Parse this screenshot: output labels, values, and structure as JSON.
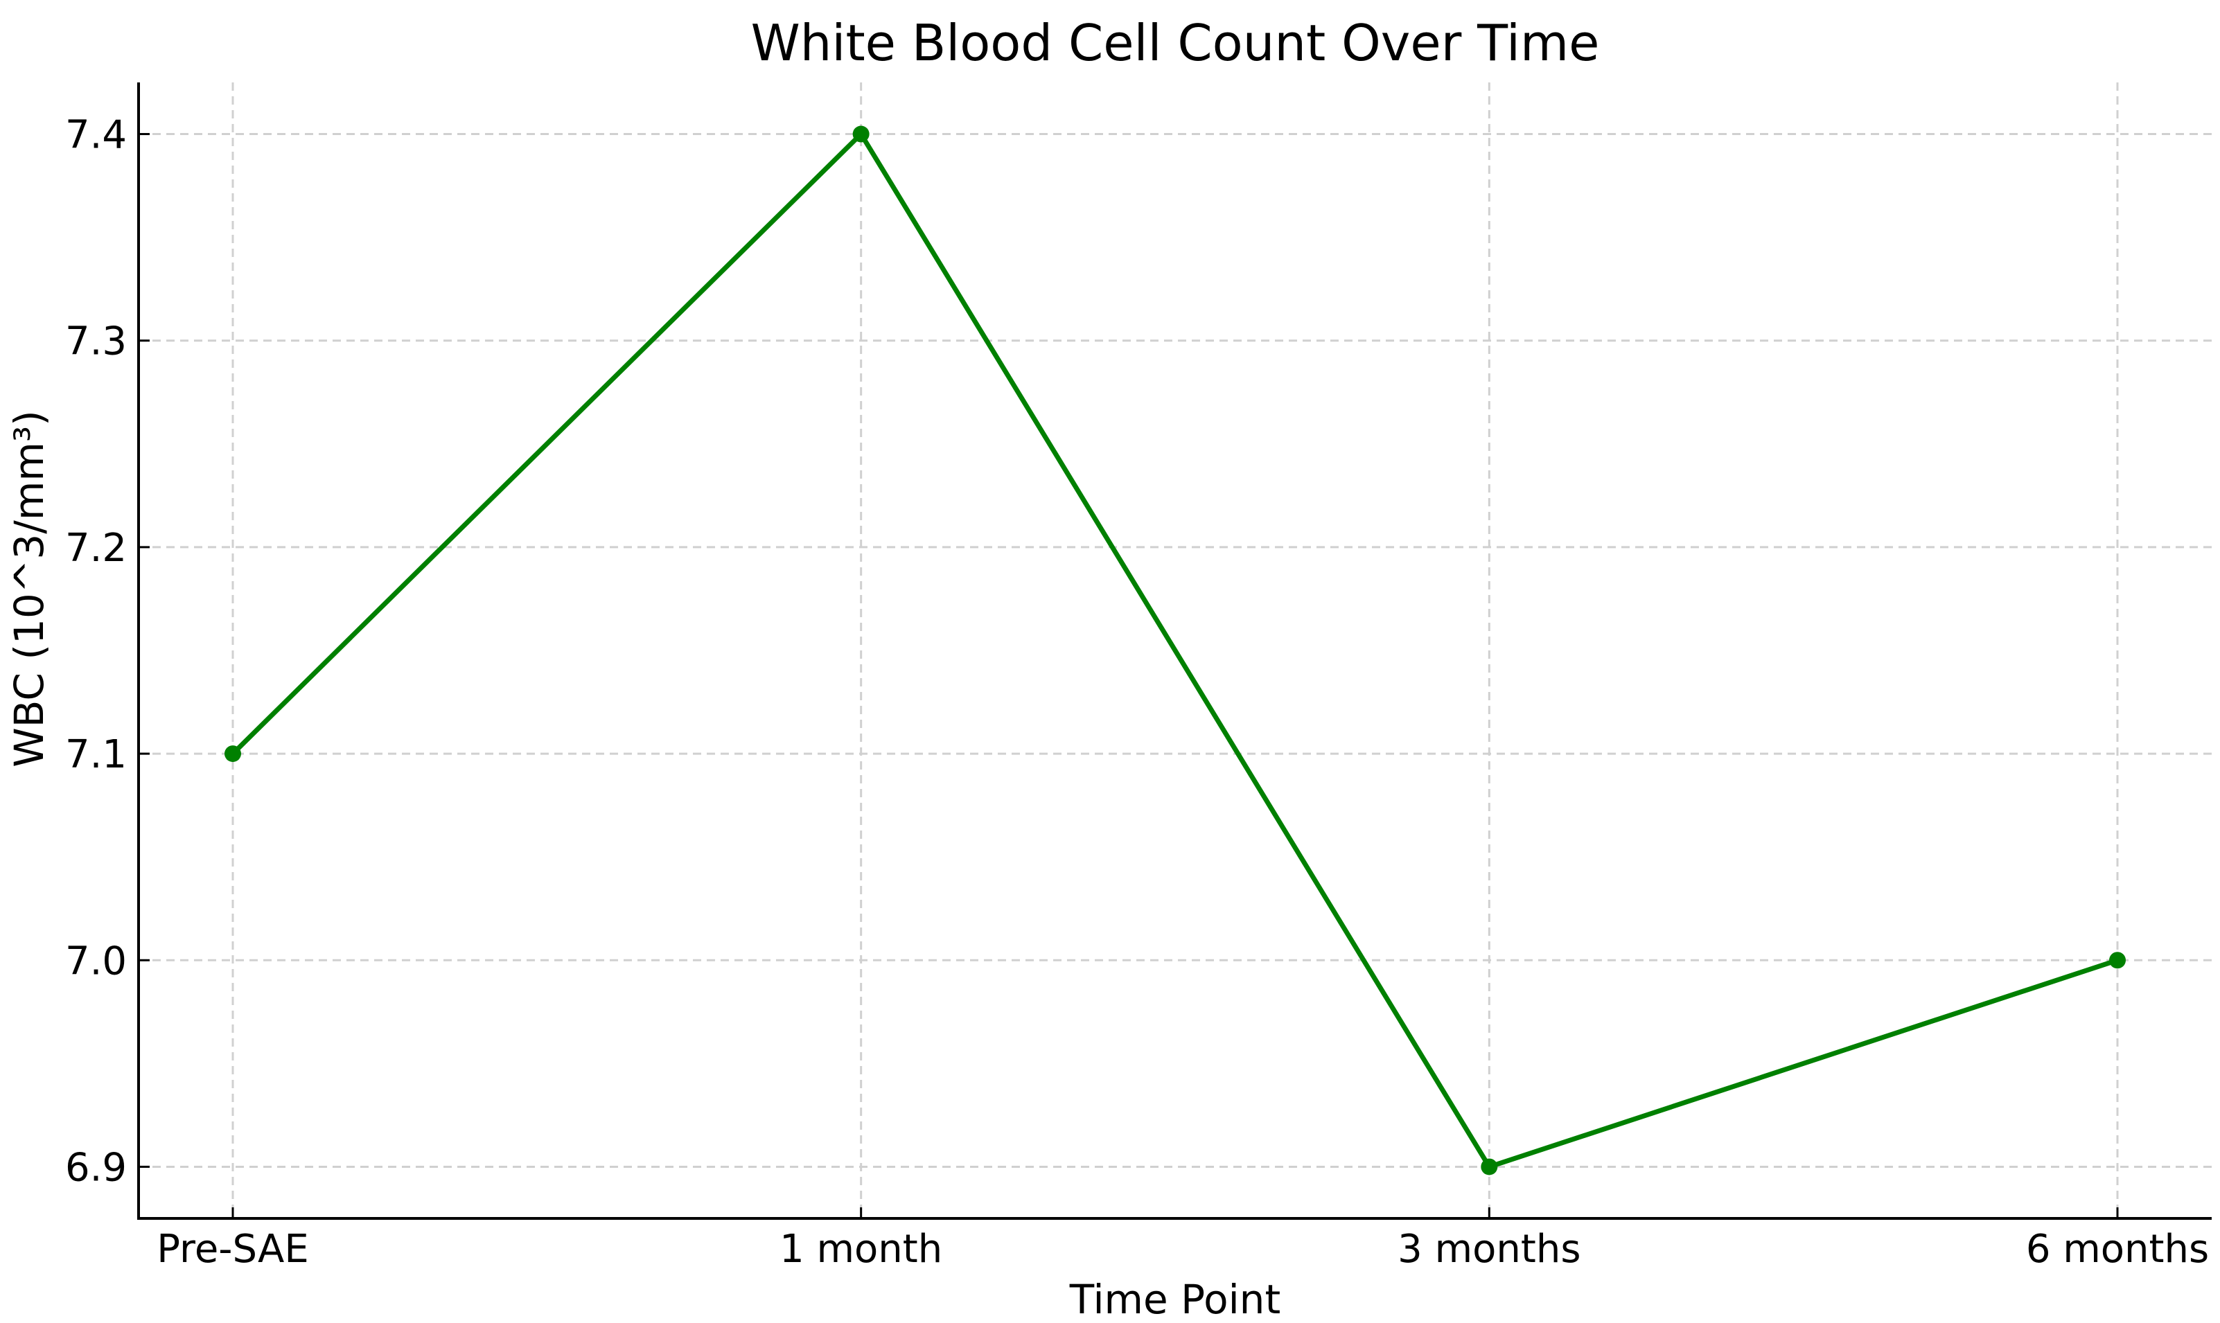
{
  "chart_data": {
    "type": "line",
    "title": "White Blood Cell Count Over Time",
    "xlabel": "Time Point",
    "ylabel": "WBC (10^3/mm³)",
    "categories": [
      "Pre-SAE",
      "1 month",
      "3 months",
      "6 months"
    ],
    "series": [
      {
        "name": "WBC",
        "values": [
          7.1,
          7.4,
          6.9,
          7.0
        ]
      }
    ],
    "yticks": [
      6.9,
      7.0,
      7.1,
      7.2,
      7.3,
      7.4
    ],
    "ytick_labels": [
      "6.9",
      "7.0",
      "7.1",
      "7.2",
      "7.3",
      "7.4"
    ],
    "ylim": [
      6.875,
      7.425
    ],
    "grid": true,
    "grid_style": "dashed",
    "legend": "none",
    "line_color": "#008000",
    "marker": "circle",
    "grid_color": "#d0d0d0",
    "axis_color": "#000000",
    "text_color": "#000000",
    "background_color": "#ffffff"
  }
}
